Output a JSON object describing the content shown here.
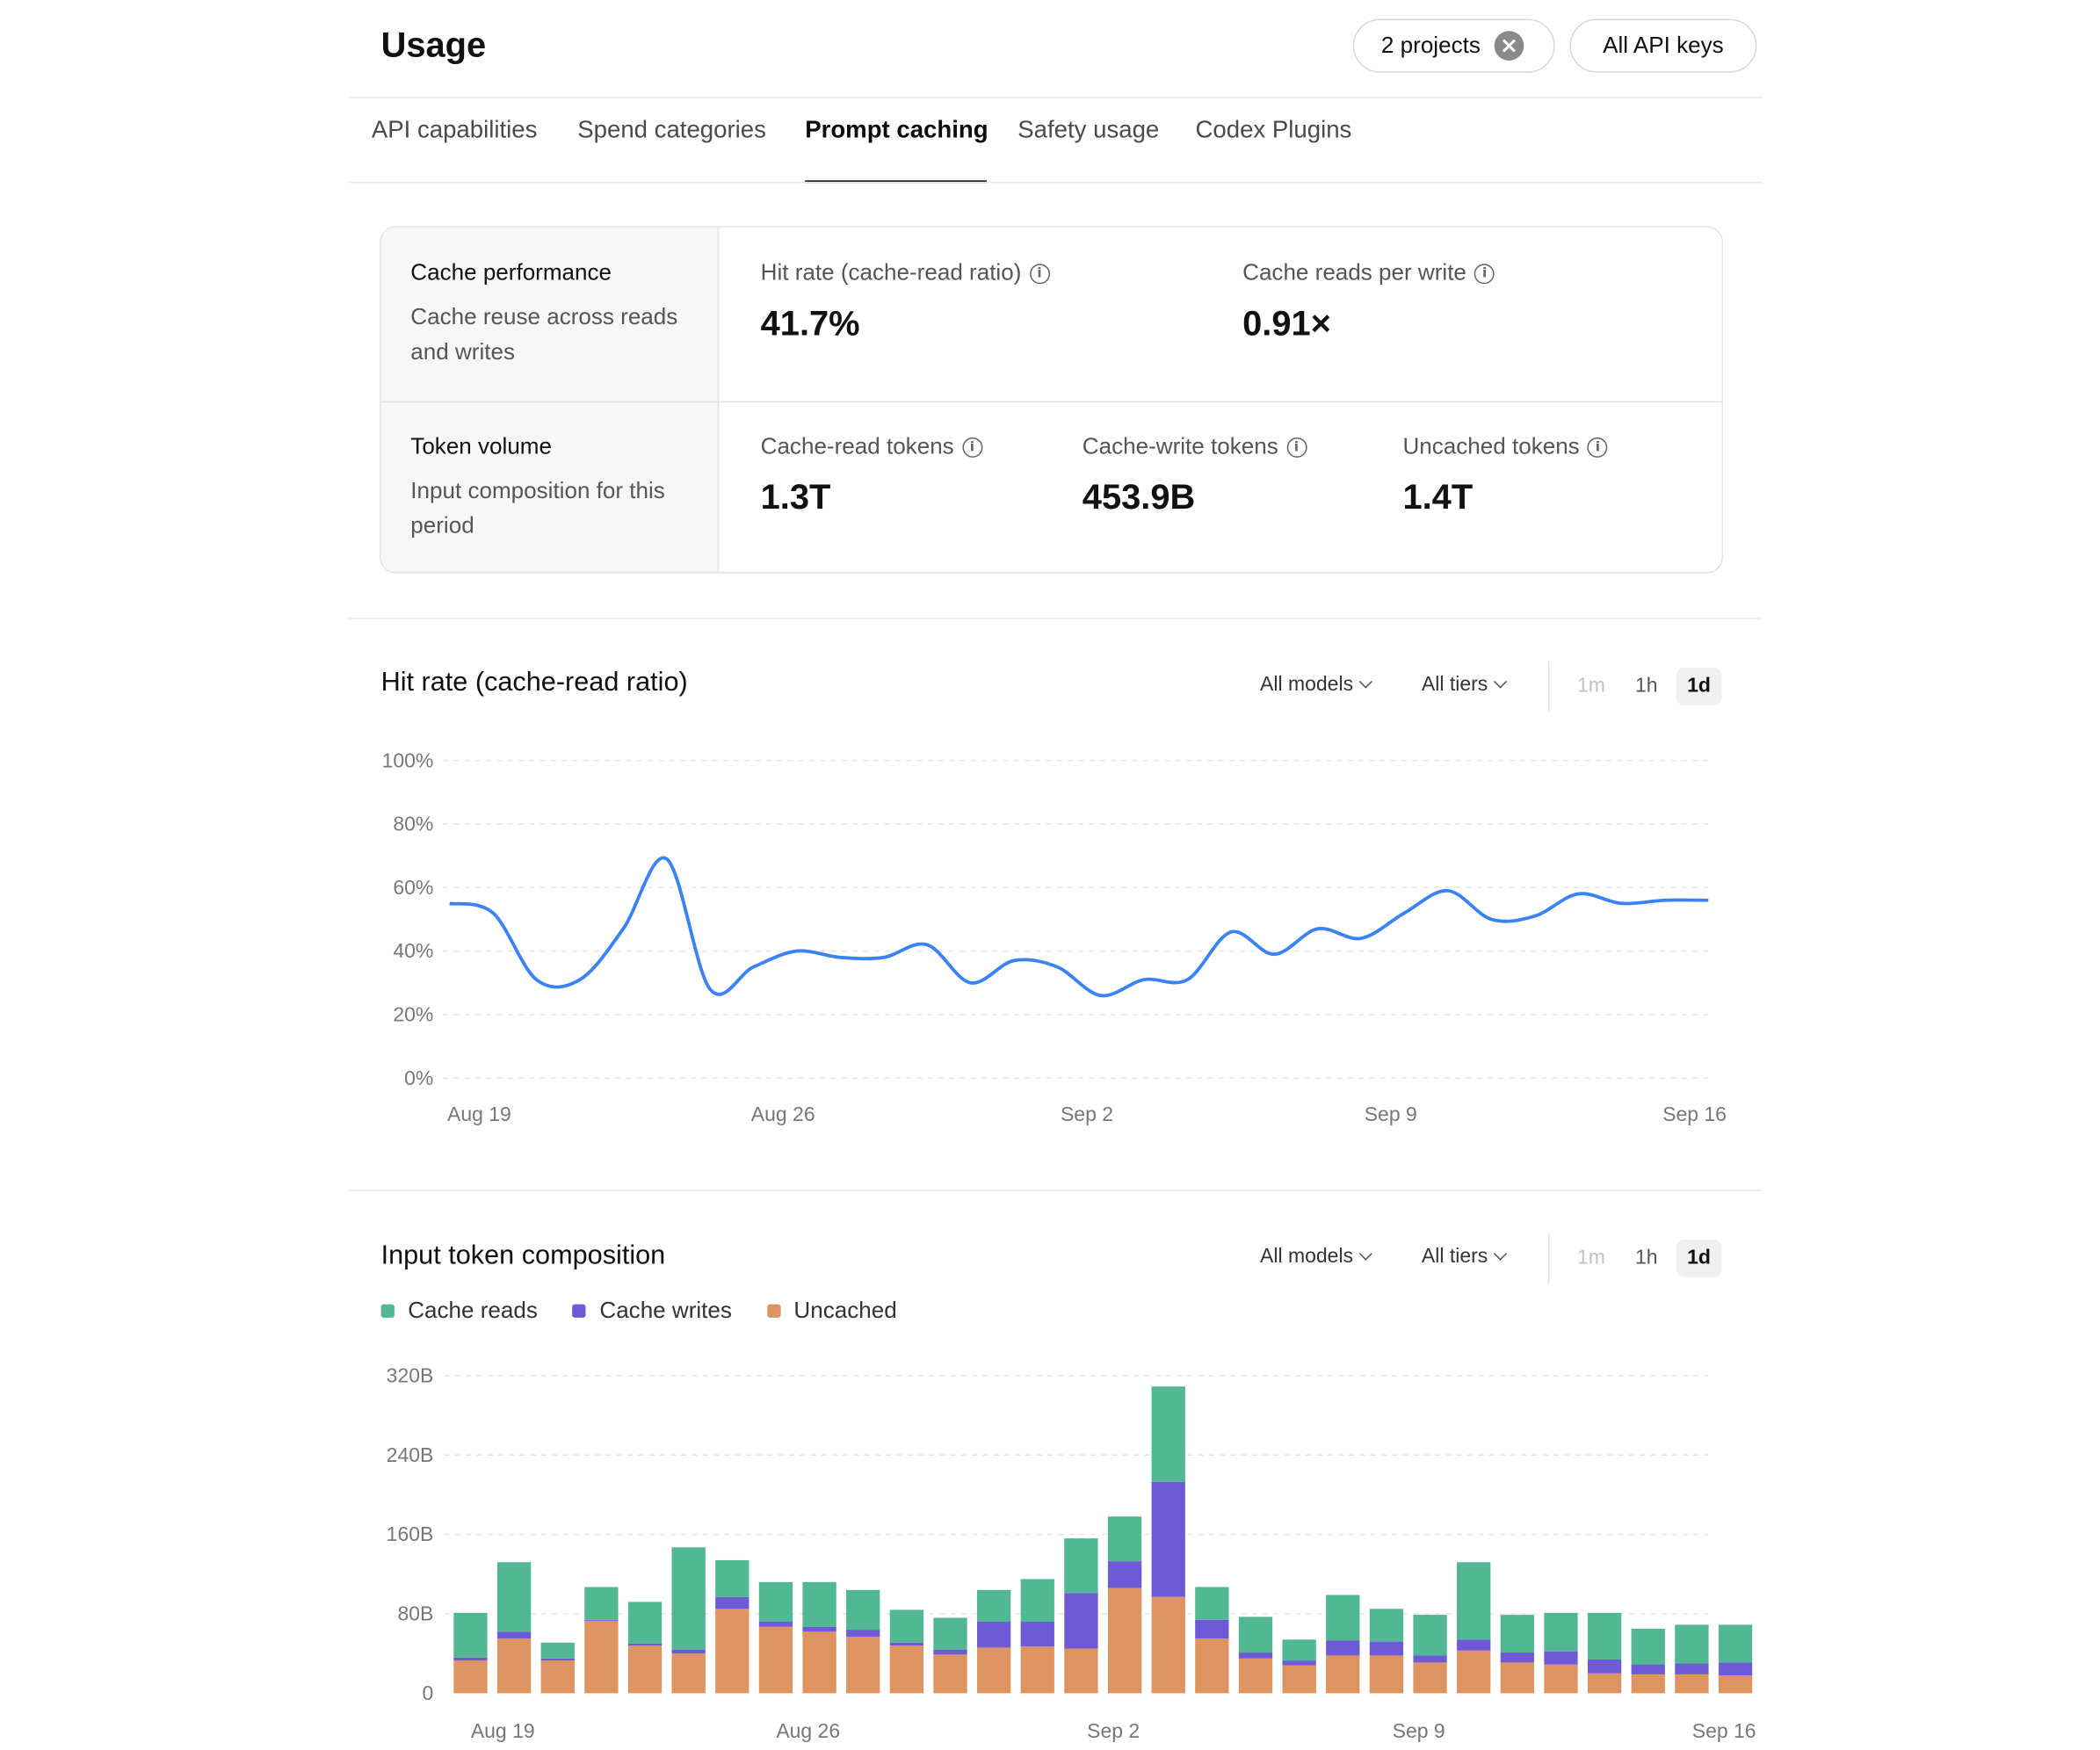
{
  "header": {
    "title": "Usage",
    "projects_filter": "2 projects",
    "api_keys_filter": "All API keys"
  },
  "tabs": [
    {
      "label": "API capabilities"
    },
    {
      "label": "Spend categories"
    },
    {
      "label": "Prompt caching",
      "active": true
    },
    {
      "label": "Safety usage"
    },
    {
      "label": "Codex Plugins"
    }
  ],
  "summary": {
    "cache_performance": {
      "title": "Cache performance",
      "subtitle": "Cache reuse across reads and writes",
      "metrics": [
        {
          "label": "Hit rate (cache-read ratio)",
          "value": "41.7%"
        },
        {
          "label": "Cache reads per write",
          "value": "0.91×"
        }
      ]
    },
    "token_volume": {
      "title": "Token volume",
      "subtitle": "Input composition for this period",
      "metrics": [
        {
          "label": "Cache-read tokens",
          "value": "1.3T"
        },
        {
          "label": "Cache-write tokens",
          "value": "453.9B"
        },
        {
          "label": "Uncached tokens",
          "value": "1.4T"
        }
      ]
    }
  },
  "controls": {
    "models": "All models",
    "tiers": "All tiers",
    "granularity": [
      "1m",
      "1h",
      "1d"
    ],
    "selected_granularity": "1d"
  },
  "colors": {
    "line": "#3b82f6",
    "cache_reads": "#52b893",
    "cache_writes": "#6e5ad7",
    "uncached": "#dd9460"
  },
  "charts": {
    "hit_rate_title": "Hit rate (cache-read ratio)",
    "composition_title": "Input token composition"
  },
  "chart_data": [
    {
      "type": "line",
      "title": "Hit rate (cache-read ratio)",
      "ylim": [
        0,
        100
      ],
      "yticks": [
        "100%",
        "80%",
        "60%",
        "40%",
        "20%",
        "0%"
      ],
      "xticks": [
        "Aug 19",
        "Aug 26",
        "Sep 2",
        "Sep 9",
        "Sep 16"
      ],
      "x": [
        "Aug 19",
        "Aug 20",
        "Aug 21",
        "Aug 22",
        "Aug 23",
        "Aug 24",
        "Aug 25",
        "Aug 26",
        "Aug 27",
        "Aug 28",
        "Aug 29",
        "Aug 30",
        "Aug 31",
        "Sep 1",
        "Sep 2",
        "Sep 3",
        "Sep 4",
        "Sep 5",
        "Sep 6",
        "Sep 7",
        "Sep 8",
        "Sep 9",
        "Sep 10",
        "Sep 11",
        "Sep 12",
        "Sep 13",
        "Sep 14",
        "Sep 15",
        "Sep 16",
        "Sep 17"
      ],
      "series": [
        {
          "values": [
            55,
            52,
            31,
            31,
            47,
            69,
            28,
            35,
            40,
            38,
            38,
            42,
            30,
            37,
            35,
            26,
            31,
            31,
            46,
            39,
            47,
            44,
            52,
            59,
            50,
            51,
            58,
            55,
            56,
            56
          ]
        }
      ]
    },
    {
      "type": "bar",
      "stacked": true,
      "title": "Input token composition",
      "ylim": [
        0,
        320
      ],
      "yticks": [
        "320B",
        "240B",
        "160B",
        "80B",
        "0"
      ],
      "xticks": [
        "Aug 19",
        "Aug 26",
        "Sep 2",
        "Sep 9",
        "Sep 16"
      ],
      "categories": [
        "Aug 19",
        "Aug 20",
        "Aug 21",
        "Aug 22",
        "Aug 23",
        "Aug 24",
        "Aug 25",
        "Aug 26",
        "Aug 27",
        "Aug 28",
        "Aug 29",
        "Aug 30",
        "Aug 31",
        "Sep 1",
        "Sep 2",
        "Sep 3",
        "Sep 4",
        "Sep 5",
        "Sep 6",
        "Sep 7",
        "Sep 8",
        "Sep 9",
        "Sep 10",
        "Sep 11",
        "Sep 12",
        "Sep 13",
        "Sep 14",
        "Sep 15",
        "Sep 16",
        "Sep 17"
      ],
      "series": [
        {
          "name": "Uncached",
          "values": [
            33,
            55,
            33,
            73,
            48,
            40,
            85,
            67,
            62,
            57,
            48,
            39,
            46,
            47,
            45,
            106,
            97,
            55,
            35,
            28,
            38,
            38,
            31,
            43,
            31,
            29,
            20,
            19,
            19,
            18
          ]
        },
        {
          "name": "Cache writes",
          "values": [
            3,
            7,
            2,
            1,
            2,
            4,
            12,
            5,
            5,
            7,
            3,
            5,
            26,
            25,
            56,
            27,
            116,
            19,
            6,
            5,
            15,
            14,
            7,
            11,
            10,
            13,
            14,
            10,
            11,
            13
          ]
        },
        {
          "name": "Cache reads",
          "values": [
            45,
            70,
            16,
            33,
            42,
            103,
            37,
            40,
            45,
            40,
            33,
            32,
            32,
            43,
            55,
            45,
            96,
            33,
            36,
            21,
            46,
            33,
            41,
            78,
            38,
            39,
            47,
            36,
            39,
            38
          ]
        }
      ]
    }
  ]
}
